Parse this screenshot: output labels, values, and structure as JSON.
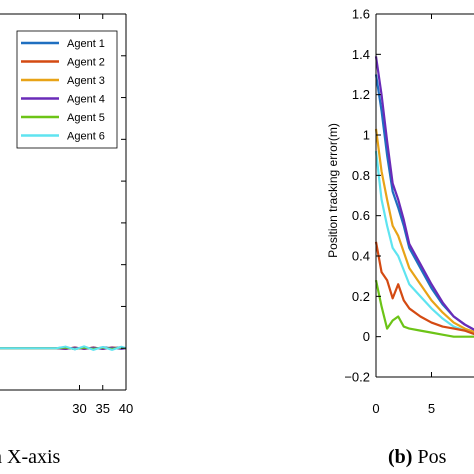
{
  "chart_data": [
    {
      "type": "line",
      "caption": "n X-axis",
      "xlabel": "",
      "ylabel": "",
      "xlim": [
        0,
        40
      ],
      "ylim": [
        -0.2,
        1.6
      ],
      "x_ticks": [
        30,
        35,
        40
      ],
      "grid": false,
      "legend": {
        "placement": "top-right"
      },
      "series": [
        {
          "name": "Agent 1",
          "color": "#1f6fc0",
          "x": [
            0,
            10,
            20,
            25,
            27,
            29,
            31,
            33,
            35,
            37,
            39,
            40
          ],
          "values": [
            0,
            0,
            0,
            0,
            0.005,
            -0.005,
            0.005,
            -0.005,
            0.005,
            0,
            0.005,
            0
          ]
        },
        {
          "name": "Agent 2",
          "color": "#d44a12",
          "x": [
            0,
            10,
            20,
            25,
            27,
            29,
            31,
            33,
            35,
            37,
            39,
            40
          ],
          "values": [
            0,
            0,
            0,
            0,
            -0.004,
            0.004,
            -0.004,
            0.004,
            -0.004,
            0.004,
            0,
            0
          ]
        },
        {
          "name": "Agent 3",
          "color": "#e8a317",
          "x": [
            0,
            10,
            20,
            25,
            27,
            29,
            31,
            33,
            35,
            37,
            39,
            40
          ],
          "values": [
            0,
            0,
            0,
            0,
            0.004,
            -0.004,
            0.006,
            -0.004,
            0.004,
            -0.004,
            0.004,
            0
          ]
        },
        {
          "name": "Agent 4",
          "color": "#6a2bb8",
          "x": [
            0,
            10,
            20,
            25,
            27,
            29,
            31,
            33,
            35,
            37,
            39,
            40
          ],
          "values": [
            0,
            0,
            0,
            0,
            -0.003,
            0.003,
            -0.003,
            0.003,
            -0.003,
            0.003,
            -0.003,
            0
          ]
        },
        {
          "name": "Agent 5",
          "color": "#6cc417",
          "x": [
            0,
            10,
            20,
            25,
            27,
            29,
            31,
            33,
            35,
            37,
            39,
            40
          ],
          "values": [
            0,
            0,
            0,
            0,
            0.003,
            -0.003,
            0.003,
            -0.003,
            0.003,
            -0.003,
            0.003,
            0
          ]
        },
        {
          "name": "Agent 6",
          "color": "#5fe4f0",
          "x": [
            0,
            10,
            20,
            25,
            27,
            29,
            31,
            33,
            35,
            37,
            39,
            40
          ],
          "values": [
            0,
            0,
            0,
            0,
            0.008,
            -0.006,
            0.009,
            -0.008,
            0.006,
            -0.008,
            0.007,
            0
          ]
        }
      ]
    },
    {
      "type": "line",
      "caption_bold": "(b)",
      "caption": " Pos",
      "xlabel": "",
      "ylabel": "Position tracking error(m)",
      "xlim": [
        0,
        10
      ],
      "ylim": [
        -0.2,
        1.6
      ],
      "x_ticks": [
        0,
        5
      ],
      "y_ticks": [
        -0.2,
        0,
        0.2,
        0.4,
        0.6,
        0.8,
        1,
        1.2,
        1.4,
        1.6
      ],
      "y_tick_labels": [
        "−0.2",
        "0",
        "0.2",
        "0.4",
        "0.6",
        "0.8",
        "1",
        "1.2",
        "1.4",
        "1.6"
      ],
      "grid": false,
      "series": [
        {
          "name": "Agent 1",
          "color": "#1f6fc0",
          "x": [
            0,
            0.5,
            1,
            1.5,
            2,
            2.5,
            3,
            4,
            5,
            6,
            7,
            8,
            9,
            10
          ],
          "values": [
            1.3,
            1.12,
            0.9,
            0.72,
            0.64,
            0.55,
            0.44,
            0.34,
            0.24,
            0.16,
            0.1,
            0.06,
            0.03,
            0.02
          ]
        },
        {
          "name": "Agent 2",
          "color": "#d44a12",
          "x": [
            0,
            0.5,
            1,
            1.5,
            2,
            2.5,
            3,
            4,
            5,
            6,
            7,
            8,
            9,
            10
          ],
          "values": [
            0.47,
            0.32,
            0.28,
            0.19,
            0.26,
            0.18,
            0.14,
            0.1,
            0.07,
            0.05,
            0.04,
            0.03,
            0.01,
            0.0
          ]
        },
        {
          "name": "Agent 3",
          "color": "#e8a317",
          "x": [
            0,
            0.5,
            1,
            1.5,
            2,
            2.5,
            3,
            4,
            5,
            6,
            7,
            8,
            9,
            10
          ],
          "values": [
            1.03,
            0.82,
            0.68,
            0.55,
            0.5,
            0.42,
            0.34,
            0.26,
            0.18,
            0.12,
            0.07,
            0.04,
            0.02,
            0.01
          ]
        },
        {
          "name": "Agent 4",
          "color": "#6a2bb8",
          "x": [
            0,
            0.5,
            1,
            1.5,
            2,
            2.5,
            3,
            4,
            5,
            6,
            7,
            8,
            9,
            10
          ],
          "values": [
            1.39,
            1.2,
            0.97,
            0.76,
            0.68,
            0.58,
            0.46,
            0.36,
            0.26,
            0.17,
            0.1,
            0.06,
            0.03,
            0.02
          ]
        },
        {
          "name": "Agent 5",
          "color": "#6cc417",
          "x": [
            0,
            0.5,
            1,
            1.5,
            2,
            2.5,
            3,
            4,
            5,
            6,
            7,
            8,
            9,
            10
          ],
          "values": [
            0.28,
            0.15,
            0.04,
            0.08,
            0.1,
            0.05,
            0.04,
            0.03,
            0.02,
            0.01,
            0.0,
            0.0,
            0.0,
            0.0
          ]
        },
        {
          "name": "Agent 6",
          "color": "#5fe4f0",
          "x": [
            0,
            0.5,
            1,
            1.5,
            2,
            2.5,
            3,
            4,
            5,
            6,
            7,
            8,
            9,
            10
          ],
          "values": [
            0.92,
            0.68,
            0.55,
            0.44,
            0.4,
            0.33,
            0.26,
            0.2,
            0.14,
            0.09,
            0.05,
            0.03,
            0.01,
            0.0
          ]
        }
      ]
    }
  ]
}
